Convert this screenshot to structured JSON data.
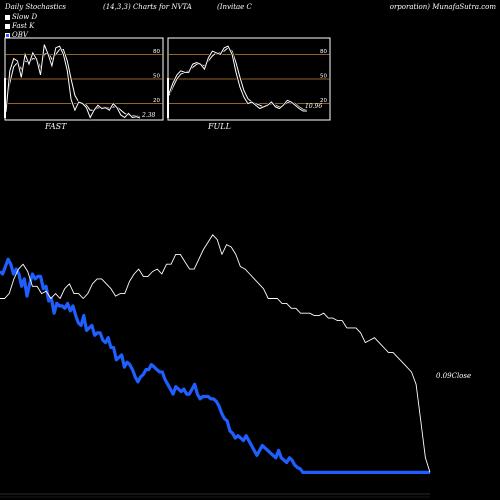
{
  "header": {
    "left": "Daily Stochastics",
    "params": "(14,3,3) Charts for NVTA",
    "company": "(Invitae  C",
    "right": "orporation) MunafaSutra.com"
  },
  "legend": [
    {
      "label": "Slow  D",
      "color": "#ffffff"
    },
    {
      "label": "Fast K",
      "color": "#ffffff"
    },
    {
      "label": "OBV",
      "color": "#1f5fff"
    }
  ],
  "colors": {
    "background": "#000000",
    "panel_border": "#ffffff",
    "ref_lines": "#c8862a",
    "obv": "#1f5fff",
    "close": "#ffffff"
  },
  "chart_data": [
    {
      "type": "line",
      "title": "FAST",
      "last_value_label": "2.38",
      "ylim": [
        0,
        100
      ],
      "ref_levels": [
        80,
        50,
        20
      ],
      "tick_labels": [
        "80",
        "50",
        "20"
      ],
      "fast_k": [
        10,
        60,
        75,
        72,
        52,
        80,
        68,
        82,
        74,
        55,
        92,
        80,
        66,
        88,
        90,
        80,
        60,
        25,
        12,
        22,
        20,
        15,
        3,
        12,
        18,
        14,
        15,
        12,
        20,
        15,
        6,
        3,
        8,
        3,
        4,
        2.38
      ],
      "slow_d": [
        15,
        45,
        65,
        70,
        62,
        72,
        70,
        75,
        74,
        64,
        80,
        82,
        74,
        80,
        86,
        86,
        72,
        50,
        30,
        22,
        20,
        18,
        12,
        12,
        15,
        15,
        16,
        14,
        16,
        16,
        12,
        8,
        6,
        5,
        5,
        4
      ]
    },
    {
      "type": "line",
      "title": "FULL",
      "last_value_label": "10.96",
      "ylim": [
        0,
        100
      ],
      "ref_levels": [
        80,
        50,
        20
      ],
      "tick_labels": [
        "80",
        "50",
        "20"
      ],
      "fast_k": [
        32,
        45,
        55,
        60,
        58,
        58,
        68,
        70,
        68,
        62,
        76,
        84,
        82,
        80,
        88,
        90,
        80,
        58,
        40,
        28,
        20,
        22,
        18,
        14,
        16,
        18,
        22,
        16,
        14,
        18,
        24,
        22,
        18,
        14,
        11,
        10.96
      ],
      "slow_d": [
        30,
        40,
        50,
        56,
        58,
        60,
        64,
        68,
        68,
        66,
        72,
        78,
        82,
        82,
        84,
        88,
        84,
        70,
        52,
        36,
        26,
        22,
        20,
        18,
        16,
        18,
        20,
        18,
        16,
        18,
        21,
        22,
        20,
        16,
        13,
        12
      ]
    },
    {
      "type": "line",
      "title": "",
      "close_label": "0.09Close",
      "series": [
        {
          "name": "OBV",
          "values": [
            81,
            80,
            83,
            86,
            84,
            80,
            82,
            80,
            75,
            78,
            71,
            76,
            80,
            78,
            79,
            79,
            74,
            75,
            69,
            70,
            64,
            68,
            67,
            67,
            66,
            68,
            65,
            67,
            63,
            60,
            59,
            63,
            57,
            58,
            59,
            55,
            56,
            56,
            53,
            52,
            54,
            50,
            50,
            45,
            46,
            47,
            42,
            44,
            43,
            41,
            38,
            36,
            38,
            39,
            41,
            41,
            43,
            42,
            41,
            40,
            40,
            37,
            35,
            33,
            31,
            34,
            33,
            32,
            33,
            31,
            31,
            33,
            35,
            31,
            29,
            30,
            30,
            30,
            29,
            29,
            28,
            26,
            23,
            21,
            20,
            16,
            15,
            13,
            14,
            13,
            12,
            14,
            12,
            10,
            8,
            6,
            8,
            10,
            9,
            8,
            7,
            6,
            5,
            8,
            5,
            4,
            3,
            5,
            4,
            2,
            1,
            0.5,
            -1,
            -1,
            -1,
            -1,
            -1,
            -1,
            -1,
            -1,
            -1,
            -1,
            -1,
            -1,
            -1,
            -1,
            -1,
            -1,
            -1,
            -1,
            -1,
            -1,
            -1,
            -1,
            -1,
            -1,
            -1,
            -1,
            -1,
            -1,
            -1,
            -1,
            -1,
            -1,
            -1,
            -1,
            -1,
            -1,
            -1,
            -1,
            -1,
            -1,
            -1,
            -1,
            -1,
            -1,
            -1,
            -1,
            -1,
            -1
          ]
        },
        {
          "name": "Close",
          "values": [
            70,
            70,
            72,
            78,
            82,
            84,
            81,
            75,
            75,
            72,
            73,
            70,
            72,
            70,
            74,
            76,
            72,
            72,
            70,
            72,
            76,
            78,
            78,
            76,
            74,
            71,
            72,
            72,
            77,
            80,
            82,
            79,
            79,
            81,
            82,
            80,
            84,
            84,
            88,
            88,
            85,
            82,
            82,
            86,
            90,
            93,
            96,
            94,
            88,
            92,
            91,
            88,
            83,
            82,
            80,
            78,
            76,
            74,
            70,
            70,
            70,
            68,
            68,
            66,
            66,
            64,
            64,
            64,
            63,
            63,
            64,
            62,
            62,
            61,
            61,
            58,
            58,
            58,
            56,
            52,
            53,
            54,
            52,
            50,
            48,
            48,
            46,
            44,
            42,
            40,
            35,
            20,
            5,
            -1
          ]
        }
      ]
    }
  ]
}
